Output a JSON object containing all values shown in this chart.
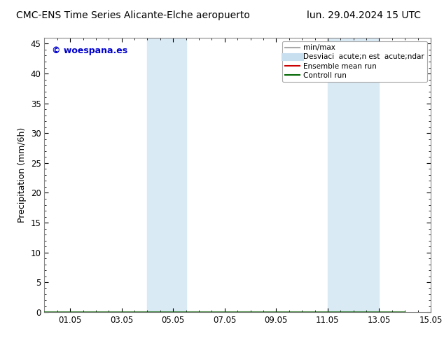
{
  "title_left": "CMC-ENS Time Series Alicante-Elche aeropuerto",
  "title_right": "lun. 29.04.2024 15 UTC",
  "ylabel": "Precipitation (mm/6h)",
  "ylim": [
    0,
    46
  ],
  "yticks": [
    0,
    5,
    10,
    15,
    20,
    25,
    30,
    35,
    40,
    45
  ],
  "xmin": 0.0,
  "xmax": 14.0,
  "xtick_positions": [
    1.0,
    3.0,
    5.0,
    7.0,
    9.0,
    11.0,
    13.0,
    15.0
  ],
  "xtick_labels": [
    "01.05",
    "03.05",
    "05.05",
    "07.05",
    "09.05",
    "11.05",
    "13.05",
    "15.05"
  ],
  "shaded_regions": [
    {
      "xmin": 4.0,
      "xmax": 5.5,
      "color": "#daeaf5"
    },
    {
      "xmin": 11.0,
      "xmax": 13.0,
      "color": "#daeaf5"
    }
  ],
  "watermark_text": "© woespana.es",
  "watermark_color": "#0000cc",
  "legend_items": [
    {
      "label": "min/max",
      "color": "#aaaaaa",
      "lw": 1.5,
      "ls": "-"
    },
    {
      "label": "Desviaci  acute;n est  acute;ndar",
      "color": "#c8dff0",
      "lw": 8,
      "ls": "-"
    },
    {
      "label": "Ensemble mean run",
      "color": "#cc0000",
      "lw": 1.5,
      "ls": "-"
    },
    {
      "label": "Controll run",
      "color": "#006600",
      "lw": 1.5,
      "ls": "-"
    }
  ],
  "background_color": "#ffffff",
  "plot_bg_color": "#ffffff",
  "title_fontsize": 10,
  "axis_fontsize": 9,
  "tick_fontsize": 8.5,
  "legend_fontsize": 7.5,
  "watermark_fontsize": 9
}
